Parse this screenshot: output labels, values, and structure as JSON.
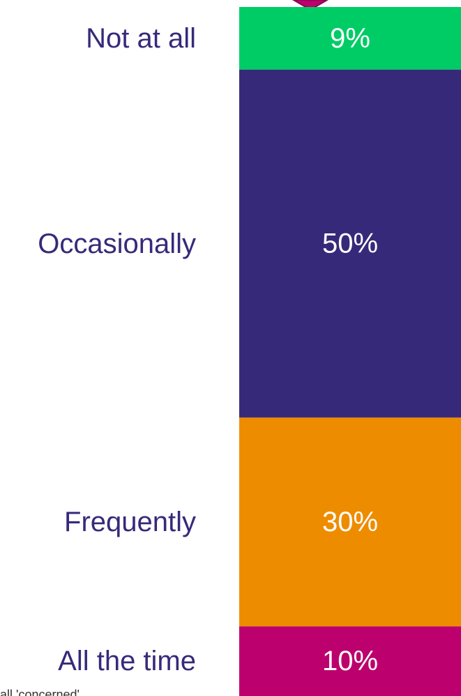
{
  "chart_data": {
    "type": "bar",
    "stacked": true,
    "orientation": "vertical",
    "categories": [
      "Not at all",
      "Occasionally",
      "Frequently",
      "All the time"
    ],
    "values": [
      9,
      50,
      30,
      10
    ],
    "value_labels": [
      "9%",
      "50%",
      "30%",
      "10%"
    ],
    "colors": [
      "#00cc66",
      "#37297a",
      "#ee8c00",
      "#bc006d"
    ],
    "title": "",
    "xlabel": "",
    "ylabel": "",
    "unit": "%"
  },
  "footnote": "all 'concerned'",
  "colors": {
    "label_text": "#37297a",
    "value_text": "#ffffff",
    "marker": "#bc006d"
  }
}
